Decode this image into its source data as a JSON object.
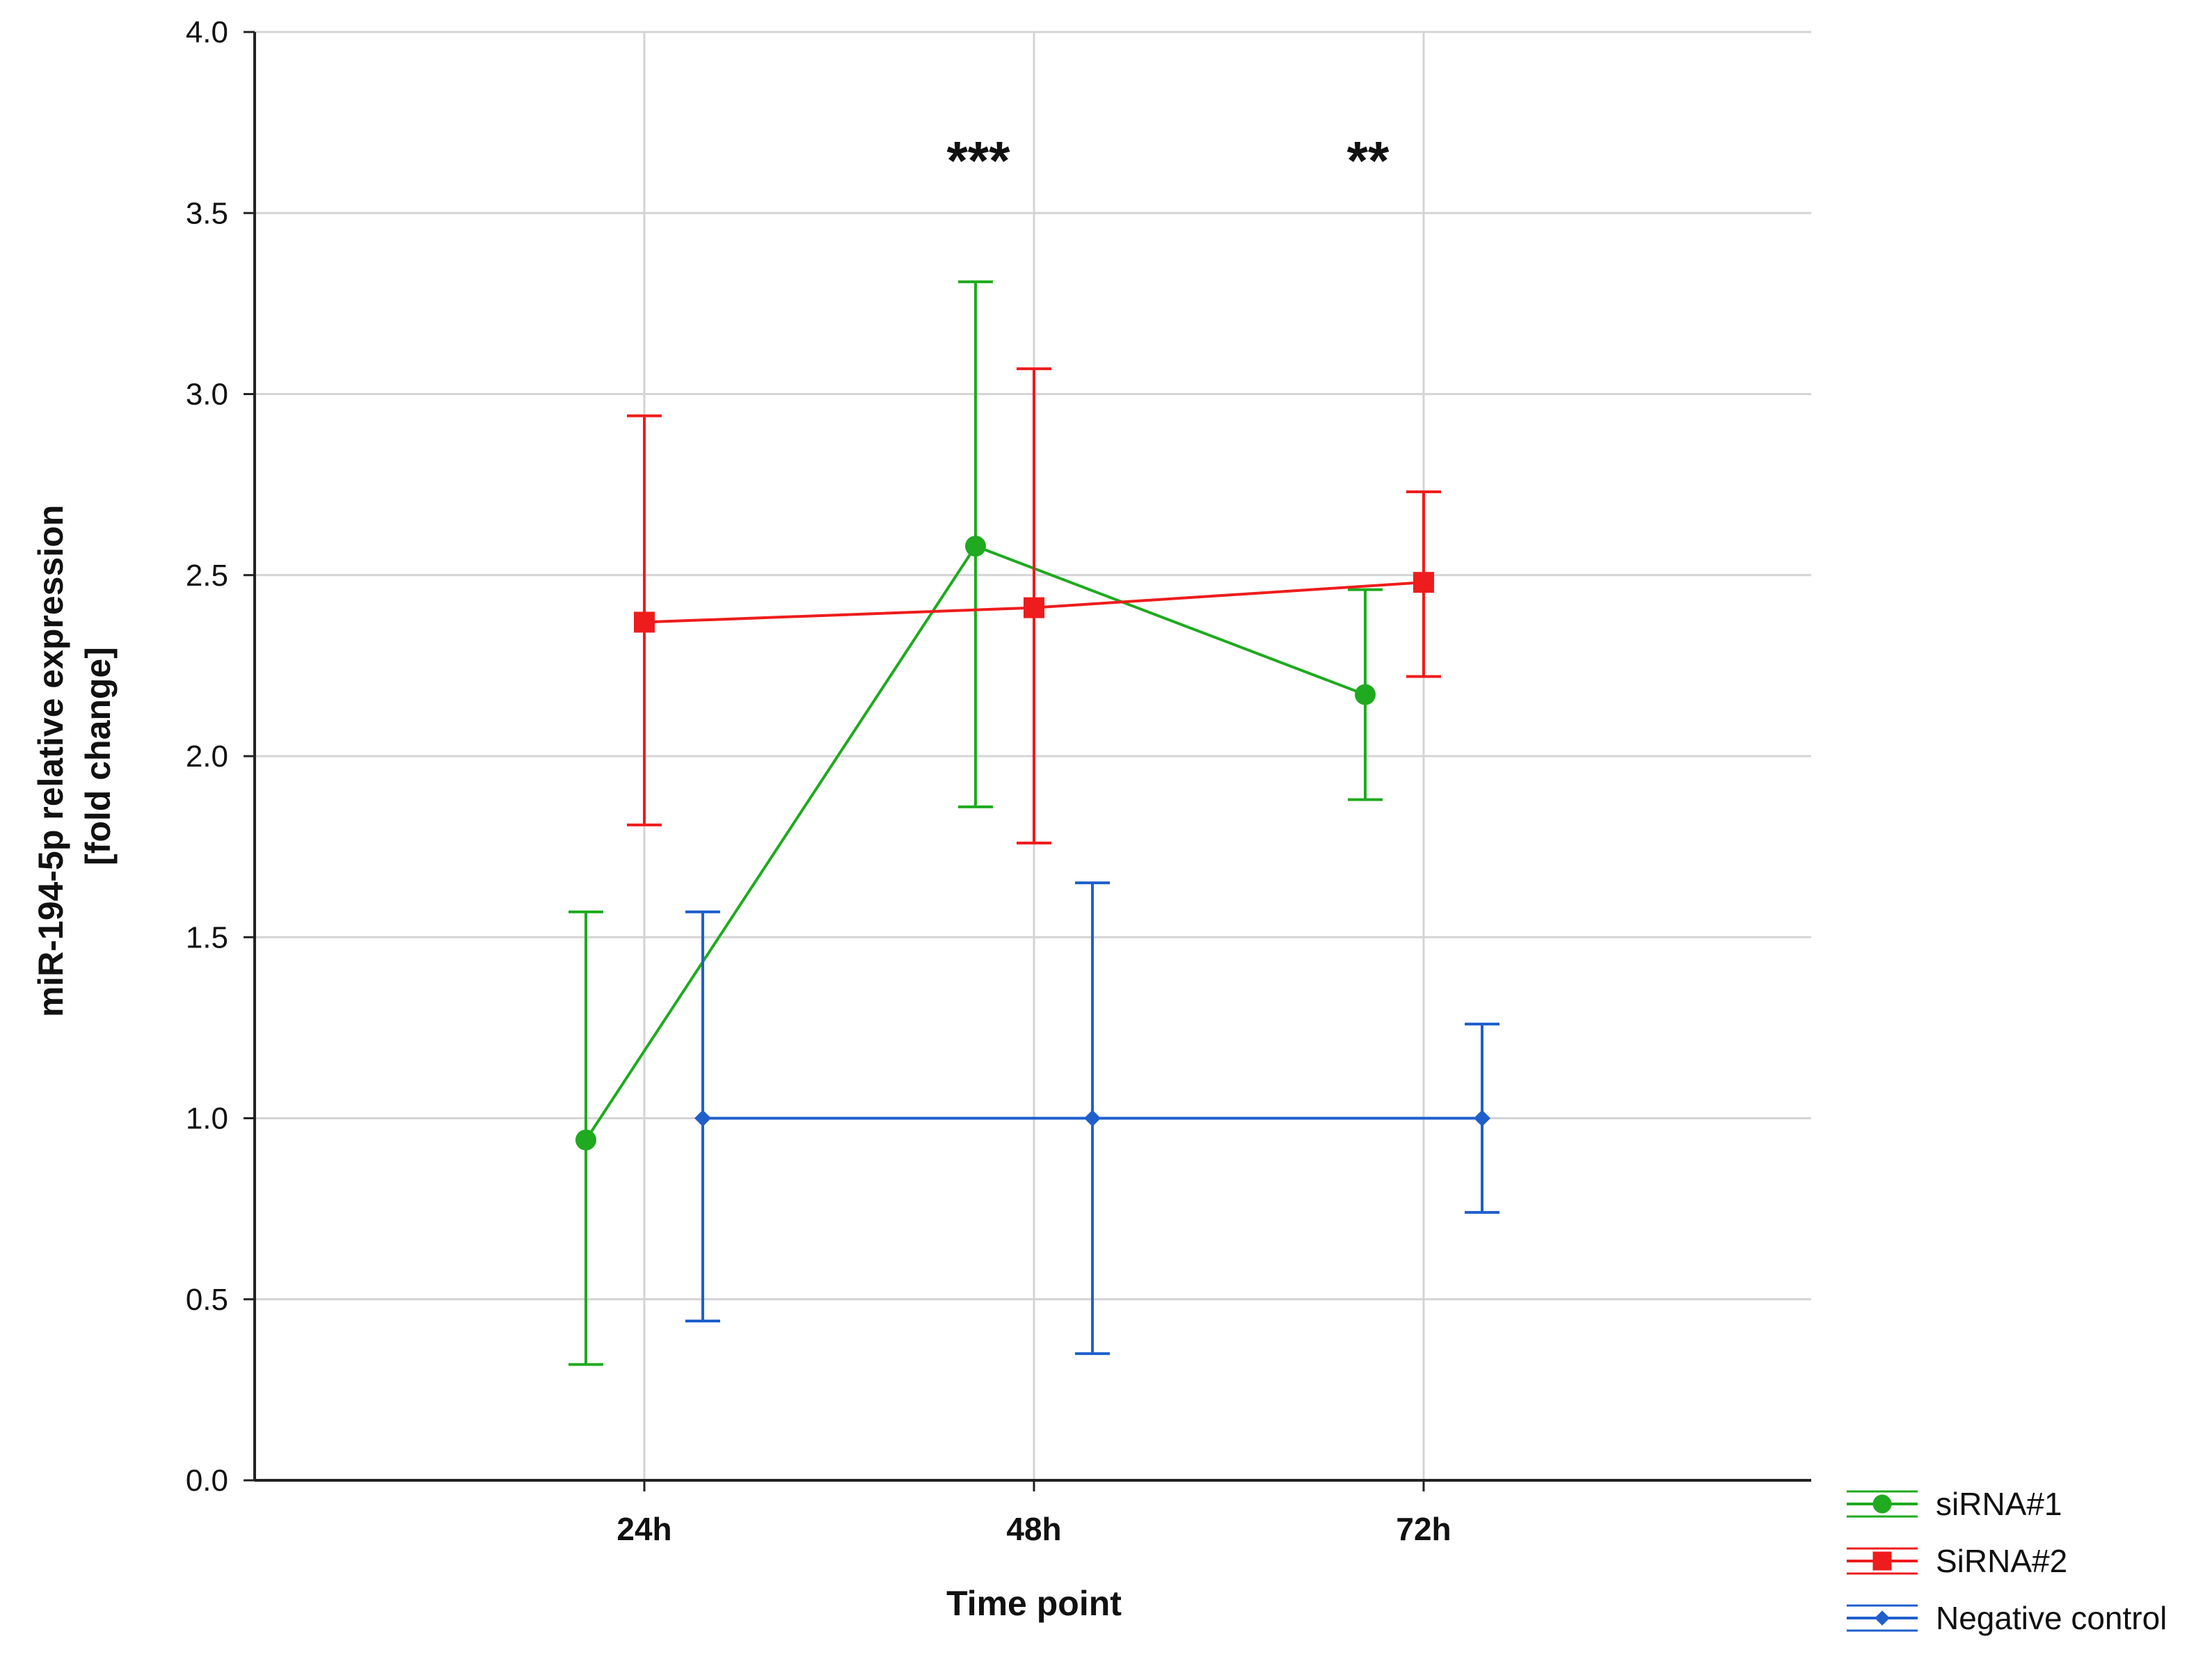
{
  "chart_data": {
    "type": "line",
    "title": "",
    "xlabel": "Time point",
    "ylabel_lines": [
      "miR-194-5p relative expression",
      "[fold change]"
    ],
    "categories": [
      "24h",
      "48h",
      "72h"
    ],
    "ylim": [
      0,
      4
    ],
    "yticks": [
      "0.0",
      "0.5",
      "1.0",
      "1.5",
      "2.0",
      "2.5",
      "3.0",
      "3.5",
      "4.0"
    ],
    "grid": true,
    "legend_position": "bottom-right outside",
    "series": [
      {
        "name": "siRNA#1",
        "color": "#1faa1f",
        "marker": "circle",
        "values": [
          0.94,
          2.58,
          2.17
        ],
        "lower": [
          0.32,
          1.86,
          1.88
        ],
        "upper": [
          1.57,
          3.31,
          2.46
        ]
      },
      {
        "name": "SiRNA#2",
        "color": "#ee1c1c",
        "marker": "square",
        "values": [
          2.37,
          2.41,
          2.48
        ],
        "lower": [
          1.81,
          1.76,
          2.22
        ],
        "upper": [
          2.94,
          3.07,
          2.73
        ]
      },
      {
        "name": "Negative control",
        "color": "#1f5fcc",
        "marker": "diamond",
        "values": [
          1.0,
          1.0,
          1.0
        ],
        "lower": [
          0.44,
          0.35,
          0.74
        ],
        "upper": [
          1.57,
          1.65,
          1.26
        ]
      }
    ],
    "annotations": [
      {
        "category": "48h",
        "text": "***",
        "y": 3.68
      },
      {
        "category": "72h",
        "text": "**",
        "y": 3.68
      }
    ]
  }
}
